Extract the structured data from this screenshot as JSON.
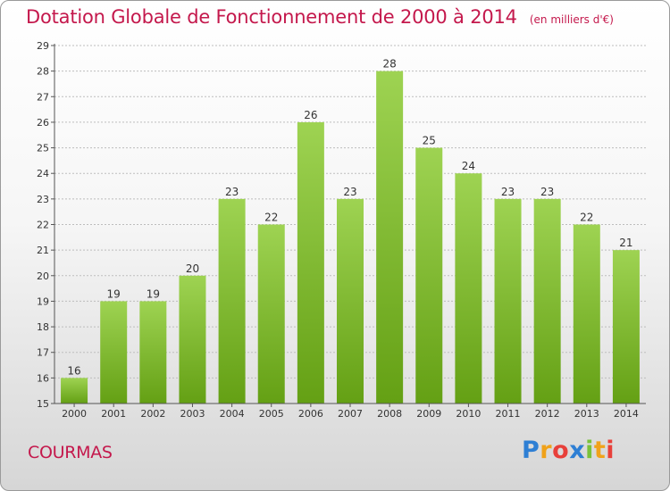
{
  "chart_data": {
    "type": "bar",
    "title": "Dotation Globale de Fonctionnement de 2000 à 2014",
    "unit_label": "(en milliers d'€)",
    "categories": [
      "2000",
      "2001",
      "2002",
      "2003",
      "2004",
      "2005",
      "2006",
      "2007",
      "2008",
      "2009",
      "2010",
      "2011",
      "2012",
      "2013",
      "2014"
    ],
    "values": [
      16,
      19,
      19,
      20,
      23,
      22,
      26,
      23,
      28,
      25,
      24,
      23,
      23,
      22,
      21
    ],
    "ylim": [
      15,
      29
    ],
    "yticks": [
      15,
      16,
      17,
      18,
      19,
      20,
      21,
      22,
      23,
      24,
      25,
      26,
      27,
      28,
      29
    ],
    "grid": true,
    "bar_color_top": "#9ed352",
    "bar_color_bottom": "#64a014",
    "title_color": "#c4184c"
  },
  "footer": {
    "commune": "COURMAS",
    "logo_text": "Proxiti"
  }
}
